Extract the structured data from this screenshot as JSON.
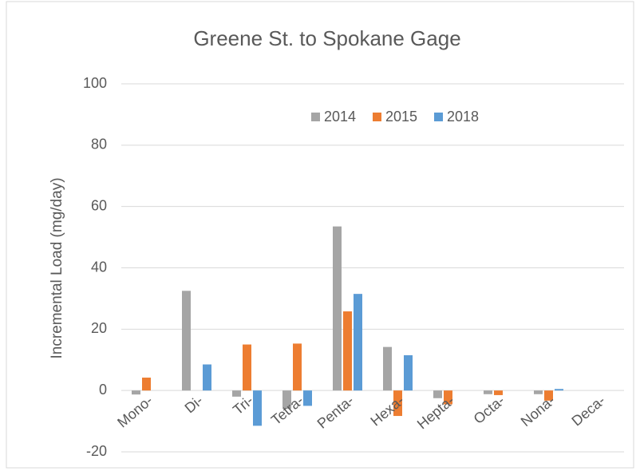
{
  "chart_data": {
    "type": "bar",
    "title": "Greene St. to Spokane Gage",
    "y_label": "Incremental Load (mg/day)",
    "categories": [
      "Mono-",
      "Di-",
      "Tri-",
      "Tetra-",
      "Penta-",
      "Hexa-",
      "Hepta-",
      "Octa-",
      "Nona-",
      "Deca-"
    ],
    "series": [
      {
        "name": "2014",
        "color": "#a5a5a5",
        "values": [
          -1.3,
          32.5,
          -2,
          -6,
          53.5,
          14.2,
          -2.5,
          -1.2,
          -1.2,
          0
        ]
      },
      {
        "name": "2015",
        "color": "#ed7d31",
        "values": [
          4.2,
          0,
          15,
          15.3,
          25.8,
          -8.3,
          -4.5,
          -1.5,
          -3.3,
          0
        ]
      },
      {
        "name": "2018",
        "color": "#5b9bd5",
        "values": [
          0,
          8.5,
          -11.5,
          -5,
          31.5,
          11.5,
          0,
          0,
          0.5,
          0
        ]
      }
    ],
    "ylim": [
      -20,
      100
    ],
    "yticks": [
      -20,
      0,
      20,
      40,
      60,
      80,
      100
    ],
    "grid": true,
    "legend": "top"
  }
}
